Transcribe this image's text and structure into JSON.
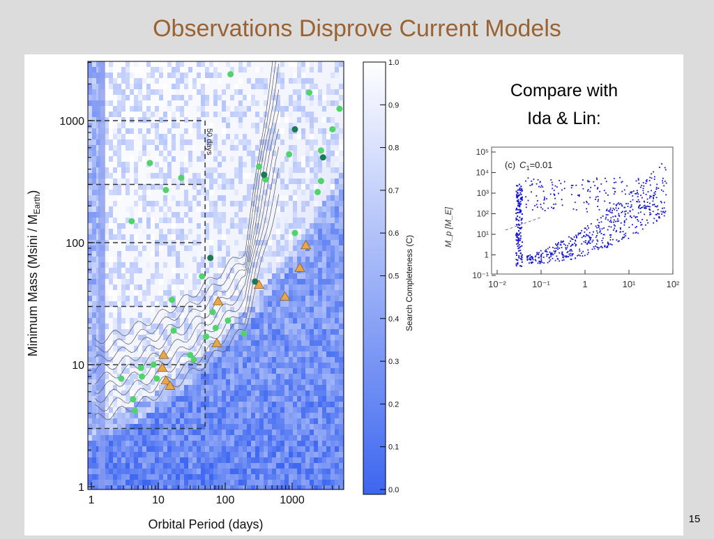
{
  "slide": {
    "title": "Observations Disprove Current Models",
    "page_number": "15"
  },
  "main_plot": {
    "x_label": "Orbital Period (days)",
    "y_label_main": "Minimum Mass (Msini / M",
    "y_label_sub": "Earth",
    "y_label_close": ")",
    "x_ticks": [
      "1",
      "10",
      "100",
      "1000"
    ],
    "y_ticks": [
      "1",
      "10",
      "100",
      "1000"
    ],
    "annotation": "50 days"
  },
  "colorbar": {
    "label": "Search Completeness (C)",
    "ticks": [
      "0.0",
      "0.1",
      "0.2",
      "0.3",
      "0.4",
      "0.5",
      "0.6",
      "0.7",
      "0.8",
      "0.9",
      "1.0"
    ],
    "color_low": "#3d66f0",
    "color_high": "#ffffff"
  },
  "compare": {
    "line1": "Compare with",
    "line2": "Ida & Lin:"
  },
  "inset": {
    "label_prefix": "(c)",
    "label_param": "C",
    "label_sub": "1",
    "label_value": "=0.01",
    "y_label": "M_p [M_E]",
    "x_ticks": [
      "10⁻²",
      "10⁻¹",
      "1",
      "10¹",
      "10²"
    ],
    "y_ticks": [
      "10⁵",
      "10⁴",
      "10³",
      "10²",
      "10¹",
      "1",
      "10⁻¹"
    ],
    "point_color": "#1010d0"
  },
  "colors": {
    "title": "#9b6231",
    "green_dots": "#4fd36a",
    "dark_green_dots": "#1a7a55",
    "triangles": "#e8a84a"
  }
}
